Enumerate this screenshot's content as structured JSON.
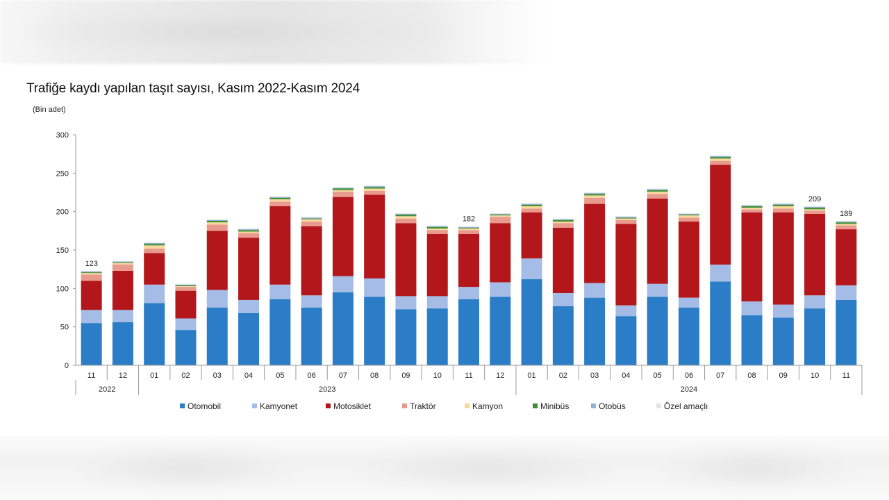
{
  "chart_data": {
    "type": "bar",
    "stacked": true,
    "title": "Trafiğe kaydı yapılan taşıt sayısı, Kasım 2022-Kasım 2024",
    "ylabel": "(Bin adet)",
    "ylim": [
      0,
      300
    ],
    "yticks": [
      "0",
      "50",
      "100",
      "150",
      "200",
      "250",
      "300"
    ],
    "categories": [
      "11",
      "12",
      "01",
      "02",
      "03",
      "04",
      "05",
      "06",
      "07",
      "08",
      "09",
      "10",
      "11",
      "12",
      "01",
      "02",
      "03",
      "04",
      "05",
      "06",
      "07",
      "08",
      "09",
      "10",
      "11"
    ],
    "year_groups": [
      {
        "label": "2022",
        "start": 0,
        "end": 1
      },
      {
        "label": "2023",
        "start": 2,
        "end": 13
      },
      {
        "label": "2024",
        "start": 14,
        "end": 24
      }
    ],
    "legend_position": "bottom",
    "grid": false,
    "series": [
      {
        "name": "Otomobil",
        "color": "#2a7dc6",
        "values": [
          55,
          56,
          81,
          46,
          75,
          68,
          86,
          75,
          95,
          89,
          73,
          74,
          86,
          89,
          112,
          77,
          88,
          64,
          89,
          75,
          109,
          65,
          62,
          74,
          85
        ]
      },
      {
        "name": "Kamyonet",
        "color": "#a5bde6",
        "values": [
          17,
          16,
          24,
          15,
          23,
          17,
          19,
          16,
          21,
          24,
          17,
          16,
          16,
          19,
          27,
          17,
          19,
          14,
          17,
          13,
          22,
          18,
          17,
          17,
          19
        ]
      },
      {
        "name": "Motosiklet",
        "color": "#b3161b",
        "values": [
          38,
          51,
          41,
          36,
          77,
          81,
          102,
          90,
          103,
          109,
          95,
          81,
          69,
          77,
          60,
          85,
          103,
          106,
          111,
          99,
          130,
          116,
          120,
          106,
          73
        ]
      },
      {
        "name": "Traktör",
        "color": "#e99a8e",
        "values": [
          8,
          8,
          6,
          5,
          8,
          6,
          6,
          6,
          7,
          5,
          6,
          5,
          5,
          8,
          5,
          6,
          8,
          5,
          6,
          5,
          5,
          4,
          5,
          4,
          5
        ]
      },
      {
        "name": "Kamyon",
        "color": "#f8d79c",
        "values": [
          2,
          2,
          4,
          1,
          3,
          2,
          3,
          3,
          2,
          3,
          3,
          2,
          2,
          2,
          3,
          2,
          3,
          2,
          3,
          3,
          3,
          2,
          3,
          2,
          2
        ]
      },
      {
        "name": "Minibüs",
        "color": "#3e8e34",
        "values": [
          1,
          1,
          2,
          1,
          2,
          2,
          2,
          1,
          2,
          2,
          2,
          2,
          1,
          1,
          2,
          2,
          2,
          1,
          2,
          1,
          2,
          2,
          2,
          2,
          2
        ]
      },
      {
        "name": "Otobüs",
        "color": "#8fb1d6",
        "values": [
          1,
          1,
          1,
          1,
          1,
          1,
          1,
          1,
          1,
          1,
          1,
          1,
          1,
          1,
          1,
          1,
          1,
          1,
          1,
          1,
          1,
          1,
          1,
          1,
          1
        ]
      },
      {
        "name": "Özel amaçlı",
        "color": "#e5e5e5",
        "values": [
          1,
          1,
          1,
          1,
          1,
          1,
          1,
          1,
          1,
          1,
          1,
          1,
          1,
          1,
          1,
          1,
          1,
          1,
          1,
          1,
          1,
          1,
          1,
          1,
          1
        ]
      }
    ],
    "annotations": [
      {
        "index": 0,
        "text": "123"
      },
      {
        "index": 12,
        "text": "182"
      },
      {
        "index": 23,
        "text": "209"
      },
      {
        "index": 24,
        "text": "189"
      }
    ]
  }
}
